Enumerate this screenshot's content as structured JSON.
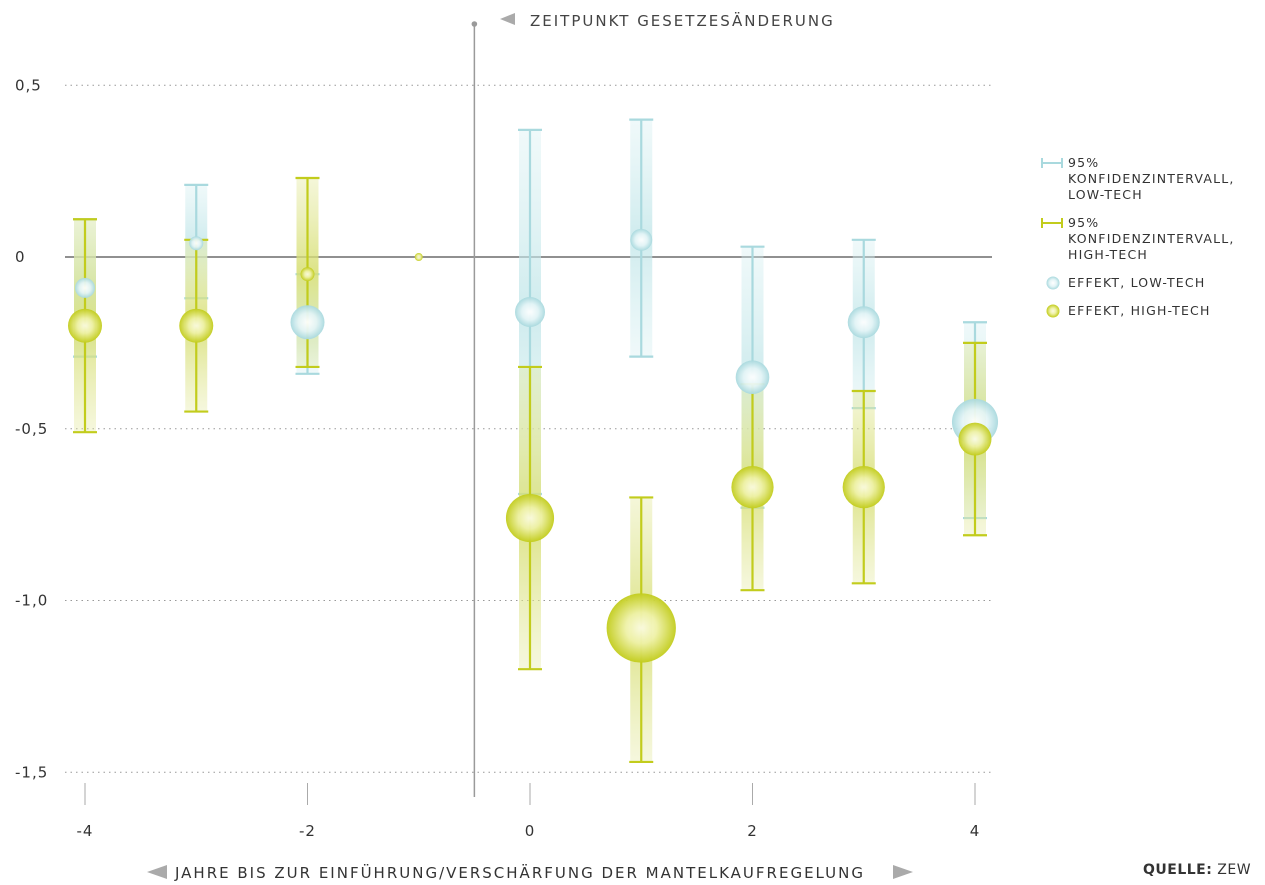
{
  "chart_data": {
    "type": "scatter",
    "xlabel": "JAHRE BIS ZUR EINFÜHRUNG/VERSCHÄRFUNG DER MANTELKAUFREGELUNG",
    "ylabel": "",
    "x_ticks": [
      "-4",
      "-2",
      "0",
      "2",
      "4"
    ],
    "y_ticks": [
      "0,5",
      "0",
      "-0,5",
      "-1,0",
      "-1,5"
    ],
    "ylim": [
      -1.5,
      0.5
    ],
    "xlim": [
      -4,
      4
    ],
    "annotation": "ZEITPUNKT GESETZESÄNDERUNG",
    "event_x": -0.5,
    "legend_position": "right",
    "colors": {
      "low_tech": "#a9d9de",
      "high_tech": "#c2cc1c"
    },
    "series": [
      {
        "name": "EFFEKT, LOW-TECH",
        "interval_name": "95% KONFIDENZINTERVALL, LOW-TECH",
        "points": [
          {
            "x": -4,
            "y": -0.09,
            "lo": -0.29,
            "hi": 0.11
          },
          {
            "x": -3,
            "y": 0.04,
            "lo": -0.12,
            "hi": 0.21
          },
          {
            "x": -2,
            "y": -0.19,
            "lo": -0.34,
            "hi": -0.05
          },
          {
            "x": 0,
            "y": -0.16,
            "lo": -0.69,
            "hi": 0.37
          },
          {
            "x": 1,
            "y": 0.05,
            "lo": -0.29,
            "hi": 0.4
          },
          {
            "x": 2,
            "y": -0.35,
            "lo": -0.73,
            "hi": 0.03
          },
          {
            "x": 3,
            "y": -0.19,
            "lo": -0.44,
            "hi": 0.05
          },
          {
            "x": 4,
            "y": -0.48,
            "lo": -0.76,
            "hi": -0.19
          }
        ]
      },
      {
        "name": "EFFEKT, HIGH-TECH",
        "interval_name": "95% KONFIDENZINTERVALL, HIGH-TECH",
        "points": [
          {
            "x": -4,
            "y": -0.2,
            "lo": -0.51,
            "hi": 0.11
          },
          {
            "x": -3,
            "y": -0.2,
            "lo": -0.45,
            "hi": 0.05
          },
          {
            "x": -2,
            "y": -0.05,
            "lo": -0.32,
            "hi": 0.23
          },
          {
            "x": -1,
            "y": 0,
            "lo": 0,
            "hi": 0
          },
          {
            "x": 0,
            "y": -0.76,
            "lo": -1.2,
            "hi": -0.32
          },
          {
            "x": 1,
            "y": -1.08,
            "lo": -1.47,
            "hi": -0.7
          },
          {
            "x": 2,
            "y": -0.67,
            "lo": -0.97,
            "hi": -0.37
          },
          {
            "x": 3,
            "y": -0.67,
            "lo": -0.95,
            "hi": -0.39
          },
          {
            "x": 4,
            "y": -0.53,
            "lo": -0.81,
            "hi": -0.25
          }
        ]
      }
    ]
  },
  "legend": {
    "items": [
      {
        "label": "95% KONFIDENZINTERVALL, LOW-TECH",
        "kind": "interval",
        "series": "low_tech"
      },
      {
        "label": "95% KONFIDENZINTERVALL, HIGH-TECH",
        "kind": "interval",
        "series": "high_tech"
      },
      {
        "label": "EFFEKT, LOW-TECH",
        "kind": "effect",
        "series": "low_tech"
      },
      {
        "label": "EFFEKT, HIGH-TECH",
        "kind": "effect",
        "series": "high_tech"
      }
    ]
  },
  "source": {
    "label": "QUELLE:",
    "value": "ZEW"
  }
}
